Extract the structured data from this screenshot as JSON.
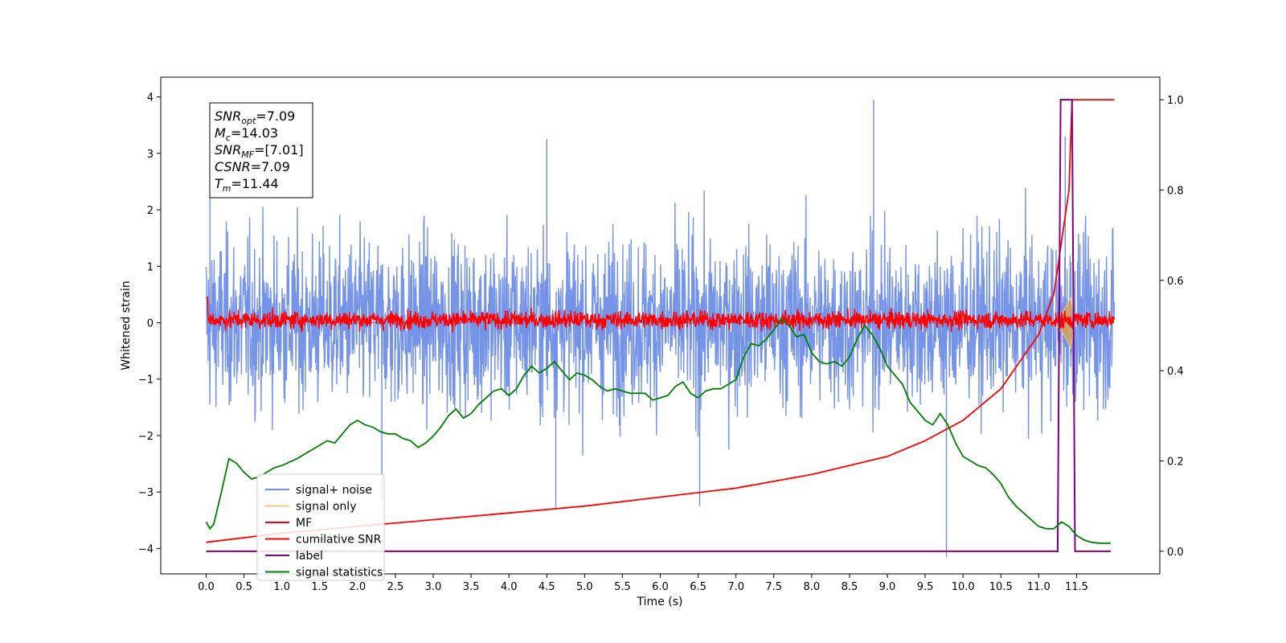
{
  "chart_data": {
    "type": "line",
    "xlabel": "Time (s)",
    "ylabel": "Whitened strain",
    "xlim": [
      -0.6,
      12.6
    ],
    "ylim_left": [
      -4.45,
      4.35
    ],
    "ylim_right": [
      -0.05,
      1.05
    ],
    "x_ticks": [
      0.0,
      0.5,
      1.0,
      1.5,
      2.0,
      2.5,
      3.0,
      3.5,
      4.0,
      4.5,
      5.0,
      5.5,
      6.0,
      6.5,
      7.0,
      7.5,
      8.0,
      8.5,
      9.0,
      9.5,
      10.0,
      10.5,
      11.0,
      11.5
    ],
    "x_tick_labels": [
      "0.0",
      "0.5",
      "1.0",
      "1.5",
      "2.0",
      "2.5",
      "3.0",
      "3.5",
      "4.0",
      "4.5",
      "5.0",
      "5.5",
      "6.0",
      "6.5",
      "7.0",
      "7.5",
      "8.0",
      "8.5",
      "9.0",
      "9.5",
      "10.0",
      "10.5",
      "11.0",
      "11.5"
    ],
    "y_left_ticks": [
      -4,
      -3,
      -2,
      -1,
      0,
      1,
      2,
      3,
      4
    ],
    "y_left_tick_labels": [
      "−4",
      "−3",
      "−2",
      "−1",
      "0",
      "1",
      "2",
      "3",
      "4"
    ],
    "y_right_ticks": [
      0.0,
      0.2,
      0.4,
      0.6,
      0.8,
      1.0
    ],
    "y_right_tick_labels": [
      "0.0",
      "0.2",
      "0.4",
      "0.6",
      "0.8",
      "1.0"
    ],
    "legend_position": "lower-left",
    "series": [
      {
        "name": "signal+ noise",
        "axis": "left",
        "color": "#6f8ee6",
        "style": "dense noise between about -2.5 and 2.5, max spike 3.95 at t=8.82, min spike -4.15 at t=9.78",
        "spikes": [
          [
            8.82,
            3.95
          ],
          [
            4.5,
            3.25
          ],
          [
            11.35,
            3.3
          ],
          [
            0.05,
            3.2
          ],
          [
            9.78,
            -4.15
          ],
          [
            4.62,
            -3.3
          ],
          [
            6.52,
            -3.25
          ],
          [
            2.32,
            -3.15
          ]
        ]
      },
      {
        "name": "signal only",
        "axis": "left",
        "color": "#f5c87a",
        "style": "chirp growing from t=11.2 to peak amplitude ~0.45 near t=11.4"
      },
      {
        "name": "MF",
        "axis": "left",
        "color": "#ff0000",
        "style": "noise band about -0.2 to 0.3, peak 0.95 at t=0.0"
      },
      {
        "name": "cumilative SNR",
        "axis": "right",
        "color": "#ff0000",
        "x": [
          0.0,
          1.0,
          2.0,
          3.0,
          4.0,
          5.0,
          6.0,
          7.0,
          8.0,
          9.0,
          9.5,
          10.0,
          10.5,
          11.0,
          11.2,
          11.4,
          11.44,
          12.0
        ],
        "y": [
          0.02,
          0.04,
          0.055,
          0.07,
          0.085,
          0.1,
          0.12,
          0.14,
          0.17,
          0.21,
          0.245,
          0.29,
          0.36,
          0.48,
          0.57,
          0.8,
          1.0,
          1.0
        ]
      },
      {
        "name": "label",
        "axis": "right",
        "color": "#800080",
        "x": [
          0.0,
          11.25,
          11.29,
          11.44,
          11.48,
          11.95
        ],
        "y": [
          0.0,
          0.0,
          1.0,
          1.0,
          0.0,
          0.0
        ]
      },
      {
        "name": "signal statistics",
        "axis": "right",
        "color": "#008000",
        "x": [
          0.0,
          0.05,
          0.1,
          0.2,
          0.3,
          0.4,
          0.5,
          0.6,
          0.7,
          0.8,
          0.9,
          1.0,
          1.2,
          1.4,
          1.5,
          1.6,
          1.7,
          1.8,
          1.9,
          2.0,
          2.1,
          2.2,
          2.3,
          2.4,
          2.5,
          2.6,
          2.7,
          2.8,
          2.9,
          3.0,
          3.1,
          3.2,
          3.3,
          3.4,
          3.5,
          3.6,
          3.7,
          3.8,
          3.9,
          4.0,
          4.1,
          4.2,
          4.3,
          4.4,
          4.5,
          4.6,
          4.7,
          4.8,
          4.9,
          5.0,
          5.1,
          5.2,
          5.3,
          5.4,
          5.5,
          5.6,
          5.7,
          5.8,
          5.9,
          6.0,
          6.1,
          6.2,
          6.3,
          6.4,
          6.5,
          6.6,
          6.7,
          6.8,
          6.9,
          7.0,
          7.1,
          7.2,
          7.3,
          7.4,
          7.5,
          7.6,
          7.7,
          7.8,
          7.9,
          8.0,
          8.1,
          8.2,
          8.3,
          8.4,
          8.5,
          8.6,
          8.7,
          8.8,
          8.9,
          9.0,
          9.1,
          9.2,
          9.3,
          9.4,
          9.5,
          9.6,
          9.7,
          9.8,
          9.9,
          10.0,
          10.1,
          10.2,
          10.3,
          10.4,
          10.5,
          10.6,
          10.7,
          10.8,
          10.9,
          11.0,
          11.1,
          11.2,
          11.3,
          11.4,
          11.5,
          11.6,
          11.7,
          11.8,
          11.95
        ],
        "y": [
          0.065,
          0.05,
          0.06,
          0.13,
          0.205,
          0.195,
          0.175,
          0.16,
          0.165,
          0.175,
          0.185,
          0.19,
          0.205,
          0.225,
          0.235,
          0.245,
          0.24,
          0.26,
          0.28,
          0.29,
          0.28,
          0.275,
          0.265,
          0.26,
          0.26,
          0.25,
          0.245,
          0.23,
          0.24,
          0.255,
          0.275,
          0.3,
          0.315,
          0.295,
          0.305,
          0.325,
          0.34,
          0.355,
          0.36,
          0.345,
          0.36,
          0.39,
          0.41,
          0.395,
          0.405,
          0.42,
          0.4,
          0.38,
          0.395,
          0.39,
          0.38,
          0.365,
          0.355,
          0.36,
          0.355,
          0.35,
          0.35,
          0.35,
          0.335,
          0.34,
          0.345,
          0.365,
          0.375,
          0.35,
          0.34,
          0.355,
          0.36,
          0.36,
          0.37,
          0.38,
          0.43,
          0.46,
          0.455,
          0.47,
          0.49,
          0.515,
          0.5,
          0.475,
          0.48,
          0.44,
          0.42,
          0.415,
          0.42,
          0.41,
          0.43,
          0.47,
          0.5,
          0.48,
          0.45,
          0.41,
          0.39,
          0.37,
          0.33,
          0.31,
          0.29,
          0.28,
          0.305,
          0.28,
          0.24,
          0.21,
          0.2,
          0.19,
          0.185,
          0.17,
          0.15,
          0.12,
          0.1,
          0.085,
          0.07,
          0.055,
          0.05,
          0.05,
          0.065,
          0.055,
          0.035,
          0.025,
          0.02,
          0.018,
          0.018
        ]
      }
    ],
    "annotation": {
      "snr_opt": "=7.09",
      "mc": "=14.03",
      "snr_mf": "=[7.01]",
      "csnr": "=7.09",
      "tm": "=11.44"
    }
  }
}
